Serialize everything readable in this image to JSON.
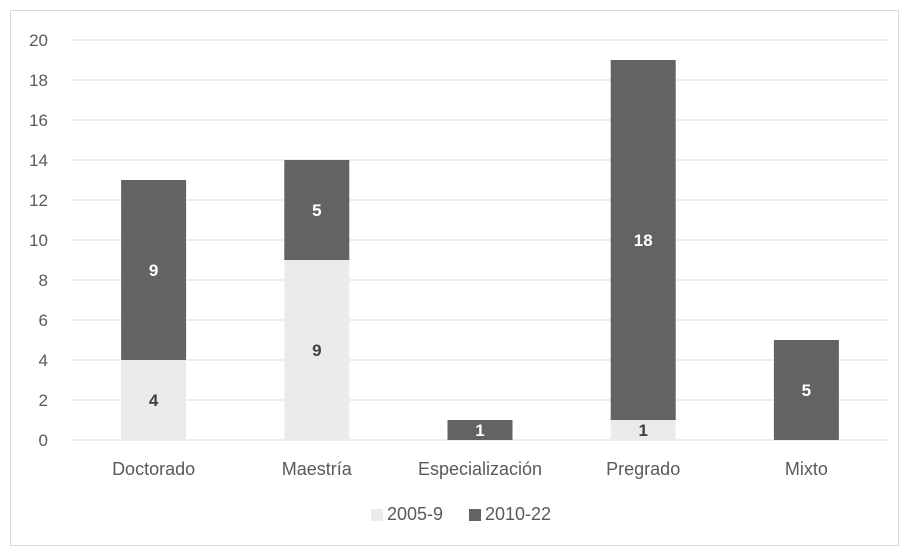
{
  "chart_data": {
    "type": "bar",
    "stacked": true,
    "categories": [
      "Doctorado",
      "Maestría",
      "Especialización",
      "Pregrado",
      "Mixto"
    ],
    "series": [
      {
        "name": "2005-9",
        "values": [
          4,
          9,
          0,
          1,
          0
        ],
        "color": "#ebebeb",
        "label_color": "#404040"
      },
      {
        "name": "2010-22",
        "values": [
          9,
          5,
          1,
          18,
          5
        ],
        "color": "#636363",
        "label_color": "#ffffff"
      }
    ],
    "ylim": [
      0,
      20
    ],
    "yticks": [
      0,
      2,
      4,
      6,
      8,
      10,
      12,
      14,
      16,
      18,
      20
    ],
    "grid": true,
    "legend": "bottom",
    "gridline_color": "#d9d9d9"
  }
}
